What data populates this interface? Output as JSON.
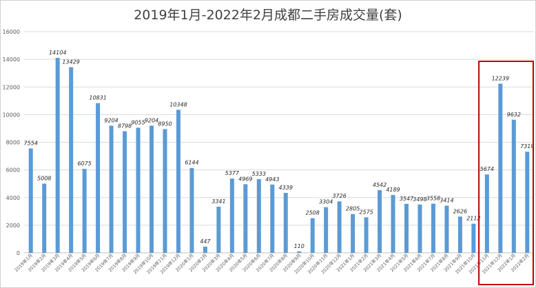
{
  "chart_data": {
    "type": "bar",
    "title": "2019年1月-2022年2月成都二手房成交量(套)",
    "xlabel": "",
    "ylabel": "",
    "ylim": [
      0,
      16000
    ],
    "yticks": [
      0,
      2000,
      4000,
      6000,
      8000,
      10000,
      12000,
      14000,
      16000
    ],
    "grid": true,
    "legend": "none",
    "bar_color": "#5b9bd5",
    "highlight_color": "#c00000",
    "highlight_range": [
      "2021年11月",
      "2022年2月"
    ],
    "categories": [
      "2019年1月",
      "2019年2月",
      "2019年3月",
      "2019年4月",
      "2019年5月",
      "2019年6月",
      "2019年7月",
      "2019年8月",
      "2019年9月",
      "2019年10月",
      "2019年11月",
      "2019年12月",
      "2020年1月",
      "2020年2月",
      "2020年3月",
      "2020年4月",
      "2020年5月",
      "2020年6月",
      "2020年7月",
      "2020年8月",
      "2020年9月",
      "2020年10月",
      "2020年11月",
      "2020年12月",
      "2021年1月",
      "2021年2月",
      "2021年3月",
      "2021年4月",
      "2021年5月",
      "2021年6月",
      "2021年7月",
      "2021年8月",
      "2021年9月",
      "2021年10月",
      "2021年11月",
      "2021年12月",
      "2022年1月",
      "2022年2月"
    ],
    "values": [
      7554,
      5008,
      14104,
      13429,
      6075,
      10831,
      9204,
      8798,
      9055,
      9204,
      8950,
      10348,
      6144,
      447,
      3341,
      5377,
      4969,
      5333,
      4943,
      4339,
      110,
      2508,
      3304,
      3726,
      2805,
      2575,
      4542,
      4189,
      3547,
      3498,
      3558,
      3414,
      2626,
      2112,
      5674,
      12239,
      9632,
      7319
    ],
    "data_labels": [
      "7554",
      "5008",
      "14104",
      "13429",
      "6075",
      "10831",
      "9204",
      "8798",
      "9055",
      "9204",
      "8950",
      "10348",
      "6144",
      "447",
      "3341",
      "5377",
      "4969",
      "5333",
      "4943",
      "4339",
      "110",
      "2508",
      "3304",
      "3726",
      "2805",
      "2575",
      "4542",
      "4189",
      "3547",
      "3498",
      "3558",
      "3414",
      "2626",
      "2112",
      "5674",
      "12239",
      "9632",
      "7319"
    ]
  }
}
